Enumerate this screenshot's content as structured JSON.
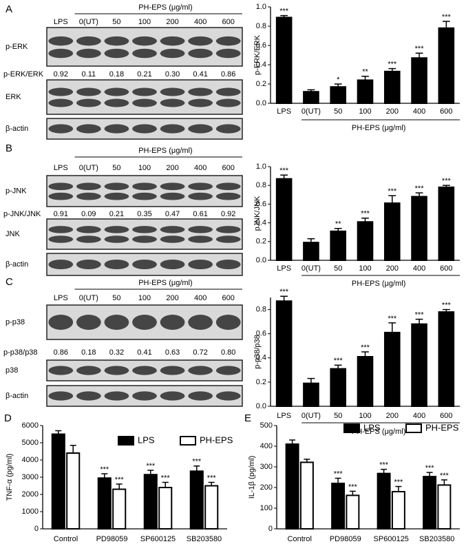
{
  "blots": [
    {
      "panel": "A",
      "header": "PH-EPS (μg/ml)",
      "lanes": [
        "LPS",
        "0(UT)",
        "50",
        "100",
        "200",
        "400",
        "600"
      ],
      "rows": [
        "p-ERK",
        "ERK",
        "β-actin"
      ],
      "ratio_label": "p-ERK/ERK",
      "ratios": [
        "0.92",
        "0.11",
        "0.18",
        "0.21",
        "0.30",
        "0.41",
        "0.86"
      ]
    },
    {
      "panel": "B",
      "header": "PH-EPS (μg/ml)",
      "lanes": [
        "LPS",
        "0(UT)",
        "50",
        "100",
        "200",
        "400",
        "600"
      ],
      "rows": [
        "p-JNK",
        "JNK",
        "β-actin"
      ],
      "ratio_label": "p-JNK/JNK",
      "ratios": [
        "0.91",
        "0.09",
        "0.21",
        "0.35",
        "0.47",
        "0.61",
        "0.92"
      ]
    },
    {
      "panel": "C",
      "header": "PH-EPS (μg/ml)",
      "lanes": [
        "LPS",
        "0(UT)",
        "50",
        "100",
        "200",
        "400",
        "600"
      ],
      "rows": [
        "p-p38",
        "p38",
        "β-actin"
      ],
      "ratio_label": "p-p38/p38",
      "ratios": [
        "0.86",
        "0.18",
        "0.32",
        "0.41",
        "0.63",
        "0.72",
        "0.80"
      ]
    }
  ],
  "chart_data": [
    {
      "type": "bar",
      "y_label": "p-ERK/ERK",
      "x_group_label": "PH-EPS (μg/ml)",
      "categories": [
        "LPS",
        "0(UT)",
        "50",
        "100",
        "200",
        "400",
        "600"
      ],
      "values": [
        0.89,
        0.12,
        0.17,
        0.24,
        0.33,
        0.47,
        0.78
      ],
      "errors": [
        0.02,
        0.02,
        0.03,
        0.04,
        0.03,
        0.05,
        0.07
      ],
      "significance": [
        "***",
        null,
        "*",
        "**",
        "***",
        "***",
        "***"
      ],
      "color": "#000000",
      "ylim": [
        0,
        1.0
      ],
      "yticks": [
        {
          "value": 0,
          "label": "0.0"
        },
        0.2,
        0.4,
        0.6,
        0.8,
        {
          "value": 1,
          "label": "1.0"
        }
      ]
    },
    {
      "type": "bar",
      "y_label": "pJNK/JNK",
      "x_group_label": "PH-EPS (μg/ml)",
      "categories": [
        "LPS",
        "0(UT)",
        "50",
        "100",
        "200",
        "400",
        "600"
      ],
      "values": [
        0.87,
        0.19,
        0.31,
        0.41,
        0.61,
        0.68,
        0.78
      ],
      "errors": [
        0.04,
        0.04,
        0.03,
        0.04,
        0.08,
        0.04,
        0.02
      ],
      "significance": [
        "***",
        null,
        "**",
        "***",
        "***",
        "***",
        "***"
      ],
      "color": "#000000",
      "ylim": [
        0,
        1.0
      ],
      "yticks": [
        {
          "value": 0,
          "label": "0.0"
        },
        0.2,
        0.4,
        0.6,
        0.8,
        {
          "value": 1,
          "label": "1.0"
        }
      ]
    },
    {
      "type": "bar",
      "y_label": "p-p38/p38",
      "x_group_label": "PH-EPS (μg/ml)",
      "categories": [
        "LPS",
        "0(UT)",
        "50",
        "100",
        "200",
        "400",
        "600"
      ],
      "values": [
        0.87,
        0.19,
        0.31,
        0.41,
        0.61,
        0.68,
        0.78
      ],
      "errors": [
        0.04,
        0.04,
        0.03,
        0.04,
        0.08,
        0.04,
        0.02
      ],
      "significance": [
        "***",
        null,
        "***",
        "***",
        "***",
        "***",
        "***"
      ],
      "color": "#000000",
      "ylim": [
        0,
        0.9
      ],
      "yticks": [
        {
          "value": 0,
          "label": "0.0"
        },
        0.2,
        0.4,
        0.6,
        0.8
      ]
    },
    {
      "type": "bar",
      "panel": "D",
      "y_label": "TNF-α (pg/ml)",
      "categories": [
        "Control",
        "PD98059",
        "SP600125",
        "SB203580"
      ],
      "series": [
        {
          "name": "LPS",
          "color": "#000000",
          "values": [
            5500,
            2950,
            3150,
            3350
          ],
          "errors": [
            200,
            250,
            250,
            300
          ],
          "significance": [
            null,
            "***",
            "***",
            "***"
          ]
        },
        {
          "name": "PH-EPS",
          "color": "#ffffff",
          "values": [
            4400,
            2300,
            2400,
            2500
          ],
          "errors": [
            450,
            300,
            300,
            200
          ],
          "significance": [
            null,
            "***",
            "***",
            "***"
          ]
        }
      ],
      "ylim": [
        0,
        6000
      ],
      "yticks": [
        0,
        1000,
        2000,
        3000,
        4000,
        5000,
        6000
      ]
    },
    {
      "type": "bar",
      "panel": "E",
      "y_label": "IL-1β (pg/ml)",
      "categories": [
        "Control",
        "PD98059",
        "SP600125",
        "SB203580"
      ],
      "series": [
        {
          "name": "LPS",
          "color": "#000000",
          "values": [
            410,
            220,
            268,
            253
          ],
          "errors": [
            20,
            25,
            20,
            20
          ],
          "significance": [
            null,
            "***",
            "***",
            "***"
          ]
        },
        {
          "name": "PH-EPS",
          "color": "#ffffff",
          "values": [
            322,
            162,
            180,
            212
          ],
          "errors": [
            15,
            20,
            25,
            25
          ],
          "significance": [
            null,
            "***",
            "***",
            "***"
          ]
        }
      ],
      "ylim": [
        0,
        500
      ],
      "yticks": [
        0,
        100,
        200,
        300,
        400,
        500
      ]
    }
  ]
}
